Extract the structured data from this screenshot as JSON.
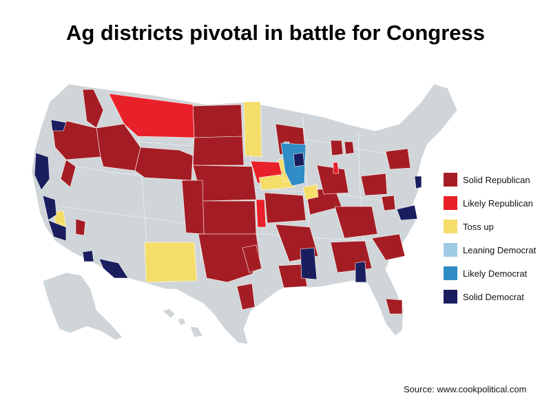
{
  "title": "Ag districts pivotal in battle for Congress",
  "legend": [
    {
      "label": "Solid Republican",
      "color": "#a51d24"
    },
    {
      "label": "Likely Republican",
      "color": "#e8202a"
    },
    {
      "label": "Toss up",
      "color": "#f5dd6a"
    },
    {
      "label": "Leaning Democrat",
      "color": "#9ecae6"
    },
    {
      "label": "Likely Democrat",
      "color": "#2f8cc4"
    },
    {
      "label": "Solid Democrat",
      "color": "#1b1e5e"
    }
  ],
  "source": "Source: www.cookpolitical.com",
  "colors": {
    "base": "#cfd5d8",
    "border": "#ffffff"
  }
}
